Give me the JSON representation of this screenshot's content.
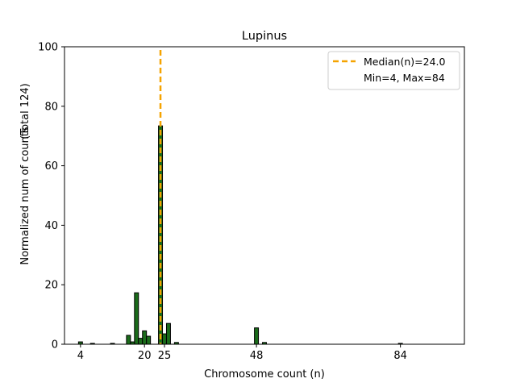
{
  "chart_data": {
    "type": "bar",
    "title": "Lupinus",
    "xlabel": "Chromosome count (n)",
    "ylabel": "Normalized num of counts",
    "ylabel_secondary": "(Total 124)",
    "xlim": [
      0,
      100
    ],
    "ylim": [
      0,
      100
    ],
    "xticks": [
      4,
      20,
      25,
      48,
      84
    ],
    "yticks": [
      0,
      20,
      40,
      60,
      80,
      100
    ],
    "grid": false,
    "legend_position": "top-right",
    "bar_color": "#1a6b1a",
    "bar_edge_color": "#000000",
    "bars": [
      {
        "x": 4,
        "y": 0.8
      },
      {
        "x": 7,
        "y": 0.3
      },
      {
        "x": 12,
        "y": 0.3
      },
      {
        "x": 16,
        "y": 3.0
      },
      {
        "x": 17,
        "y": 0.8
      },
      {
        "x": 18,
        "y": 17.3
      },
      {
        "x": 19,
        "y": 2.0
      },
      {
        "x": 20,
        "y": 4.5
      },
      {
        "x": 21,
        "y": 2.7
      },
      {
        "x": 24,
        "y": 73.4
      },
      {
        "x": 25,
        "y": 3.5
      },
      {
        "x": 26,
        "y": 7.0
      },
      {
        "x": 28,
        "y": 0.6
      },
      {
        "x": 48,
        "y": 5.5
      },
      {
        "x": 50,
        "y": 0.6
      },
      {
        "x": 84,
        "y": 0.3
      }
    ],
    "median_line": {
      "x": 24.0,
      "color": "#f5a300",
      "label": "Median(n)=24.0"
    },
    "legend": {
      "entries": [
        "Median(n)=24.0",
        "Min=4, Max=84"
      ]
    }
  }
}
